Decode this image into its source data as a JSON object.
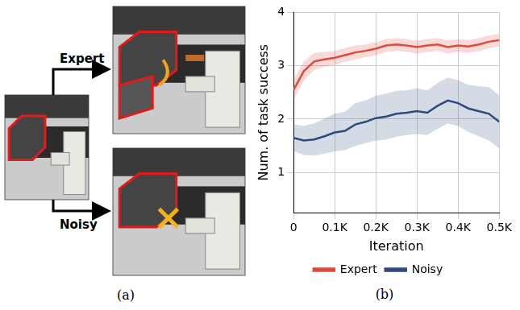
{
  "chart_data": {
    "type": "line",
    "x_label": "Iteration",
    "y_label": "Num. of task success",
    "x": [
      0,
      25,
      50,
      75,
      100,
      125,
      150,
      175,
      200,
      225,
      250,
      275,
      300,
      325,
      350,
      375,
      400,
      425,
      450,
      475,
      500
    ],
    "series": [
      {
        "name": "Expert",
        "color": "#dc4b3c",
        "values": [
          2.55,
          2.9,
          3.08,
          3.12,
          3.15,
          3.2,
          3.25,
          3.28,
          3.32,
          3.38,
          3.4,
          3.38,
          3.35,
          3.38,
          3.4,
          3.35,
          3.38,
          3.36,
          3.4,
          3.45,
          3.48
        ],
        "lower": [
          2.35,
          2.72,
          2.92,
          2.98,
          3.02,
          3.07,
          3.12,
          3.16,
          3.2,
          3.26,
          3.28,
          3.26,
          3.23,
          3.26,
          3.28,
          3.23,
          3.26,
          3.24,
          3.28,
          3.33,
          3.36
        ],
        "upper": [
          2.75,
          3.08,
          3.24,
          3.26,
          3.28,
          3.33,
          3.38,
          3.4,
          3.44,
          3.5,
          3.52,
          3.5,
          3.47,
          3.5,
          3.52,
          3.47,
          3.5,
          3.48,
          3.52,
          3.57,
          3.6
        ]
      },
      {
        "name": "Noisy",
        "color": "#2e4a7d",
        "values": [
          1.65,
          1.6,
          1.62,
          1.68,
          1.75,
          1.78,
          1.9,
          1.95,
          2.02,
          2.05,
          2.1,
          2.12,
          2.15,
          2.12,
          2.25,
          2.35,
          2.3,
          2.2,
          2.15,
          2.1,
          1.95
        ],
        "lower": [
          1.4,
          1.33,
          1.32,
          1.35,
          1.4,
          1.42,
          1.5,
          1.55,
          1.6,
          1.62,
          1.67,
          1.7,
          1.72,
          1.7,
          1.82,
          1.92,
          1.87,
          1.76,
          1.68,
          1.6,
          1.45
        ],
        "upper": [
          1.9,
          1.87,
          1.92,
          2.01,
          2.1,
          2.14,
          2.3,
          2.35,
          2.44,
          2.48,
          2.53,
          2.54,
          2.58,
          2.54,
          2.68,
          2.78,
          2.73,
          2.64,
          2.62,
          2.6,
          2.45
        ]
      }
    ],
    "xlim": [
      0,
      500
    ],
    "xticks": [
      0,
      {
        "value": 100,
        "label": "0.1K"
      },
      {
        "value": 200,
        "label": "0.2K"
      },
      {
        "value": 300,
        "label": "0.3K"
      },
      {
        "value": 400,
        "label": "0.4K"
      },
      {
        "value": 500,
        "label": "0.5K"
      }
    ],
    "ylim": [
      0.25,
      4
    ],
    "yticks": [
      1,
      2,
      3,
      4
    ],
    "grid": true,
    "legend": "bottom"
  },
  "figure": {
    "panel_a": {
      "label": "(a)",
      "branches": [
        "Expert",
        "Noisy"
      ]
    },
    "panel_b": {
      "label": "(b)"
    }
  }
}
